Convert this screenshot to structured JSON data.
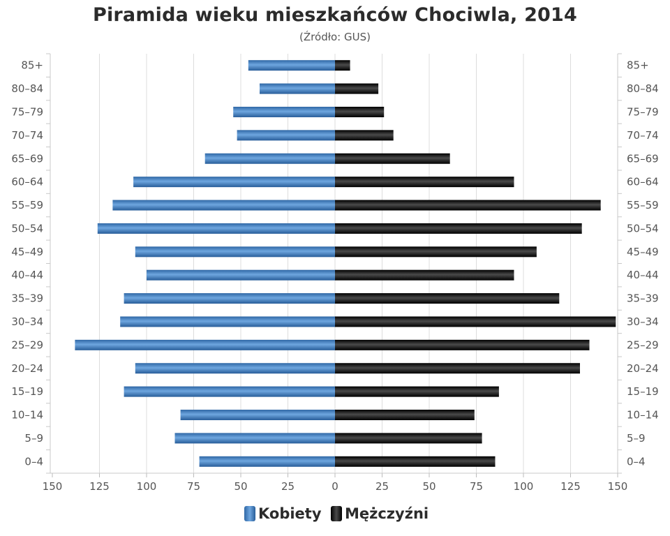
{
  "chart_data": {
    "type": "bar",
    "orientation": "horizontal",
    "title": "Piramida wieku mieszkańców Chociwla, 2014",
    "subtitle": "(Źródło: GUS)",
    "categories": [
      "85+",
      "80–84",
      "75–79",
      "70–74",
      "65–69",
      "60–64",
      "55–59",
      "50–54",
      "45–49",
      "40–44",
      "35–39",
      "30–34",
      "25–29",
      "20–24",
      "15–19",
      "10–14",
      "5–9",
      "0–4"
    ],
    "series": [
      {
        "name": "Kobiety",
        "color": "#3b78b8",
        "side": "left",
        "values": [
          46,
          40,
          54,
          52,
          69,
          107,
          118,
          126,
          106,
          100,
          112,
          114,
          138,
          106,
          112,
          82,
          85,
          72
        ]
      },
      {
        "name": "Mężczyźni",
        "color": "#111111",
        "side": "right",
        "values": [
          8,
          23,
          26,
          31,
          61,
          95,
          141,
          131,
          107,
          95,
          119,
          149,
          135,
          130,
          87,
          74,
          78,
          85
        ]
      }
    ],
    "x_ticks": [
      "150",
      "125",
      "100",
      "75",
      "50",
      "25",
      "0",
      "25",
      "50",
      "75",
      "100",
      "125",
      "150"
    ],
    "xlim": [
      -150,
      150
    ],
    "grid": true,
    "legend_position": "bottom"
  }
}
